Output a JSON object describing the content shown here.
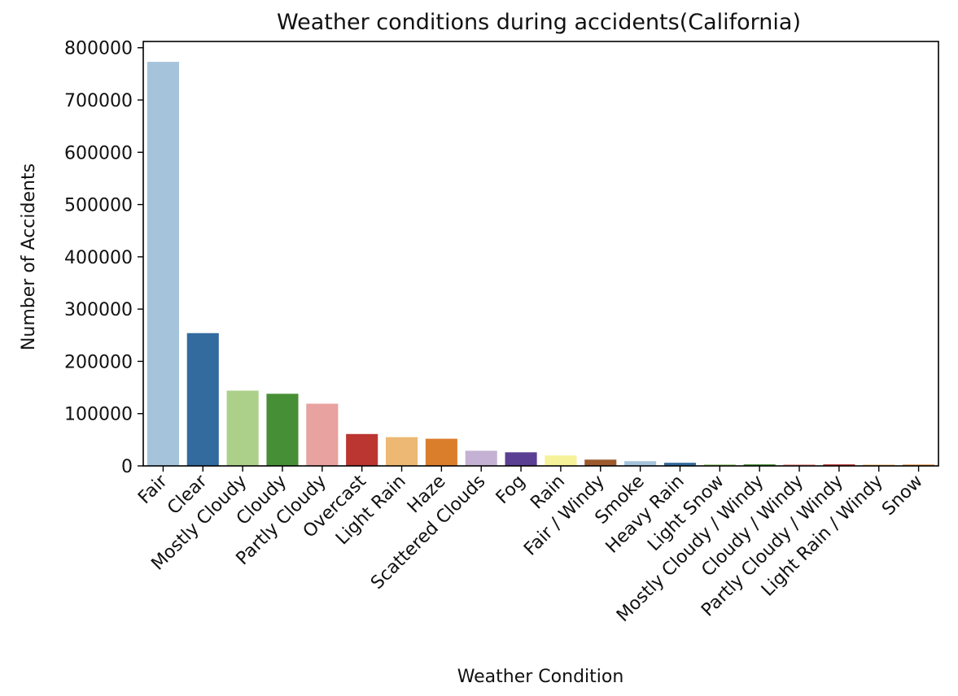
{
  "chart_data": {
    "type": "bar",
    "title": "Weather conditions during accidents(California)",
    "xlabel": "Weather Condition",
    "ylabel": "Number of Accidents",
    "ylim": [
      0,
      812000
    ],
    "yticks": [
      0,
      100000,
      200000,
      300000,
      400000,
      500000,
      600000,
      700000,
      800000
    ],
    "ytick_labels": [
      "0",
      "100000",
      "200000",
      "300000",
      "400000",
      "500000",
      "600000",
      "700000",
      "800000"
    ],
    "grid": false,
    "categories": [
      "Fair",
      "Clear",
      "Mostly Cloudy",
      "Cloudy",
      "Partly Cloudy",
      "Overcast",
      "Light Rain",
      "Haze",
      "Scattered Clouds",
      "Fog",
      "Rain",
      "Fair / Windy",
      "Smoke",
      "Heavy Rain",
      "Light Snow",
      "Mostly Cloudy / Windy",
      "Cloudy / Windy",
      "Partly Cloudy / Windy",
      "Light Rain / Windy",
      "Snow"
    ],
    "values": [
      773000,
      254000,
      144000,
      138000,
      119000,
      61000,
      55000,
      52000,
      29000,
      26000,
      20000,
      12000,
      9000,
      6000,
      3000,
      3000,
      3000,
      3000,
      2500,
      2500
    ],
    "colors": [
      "#a6c3dc",
      "#336b9f",
      "#acd08a",
      "#478f36",
      "#e8a29f",
      "#bb3631",
      "#ecb873",
      "#da7e2c",
      "#c5b1d4",
      "#5b3f92",
      "#f6f299",
      "#9c5a2d",
      "#a6c3dc",
      "#336b9f",
      "#acd08a",
      "#478f36",
      "#e8a29f",
      "#bb3631",
      "#ecb873",
      "#da7e2c"
    ]
  }
}
